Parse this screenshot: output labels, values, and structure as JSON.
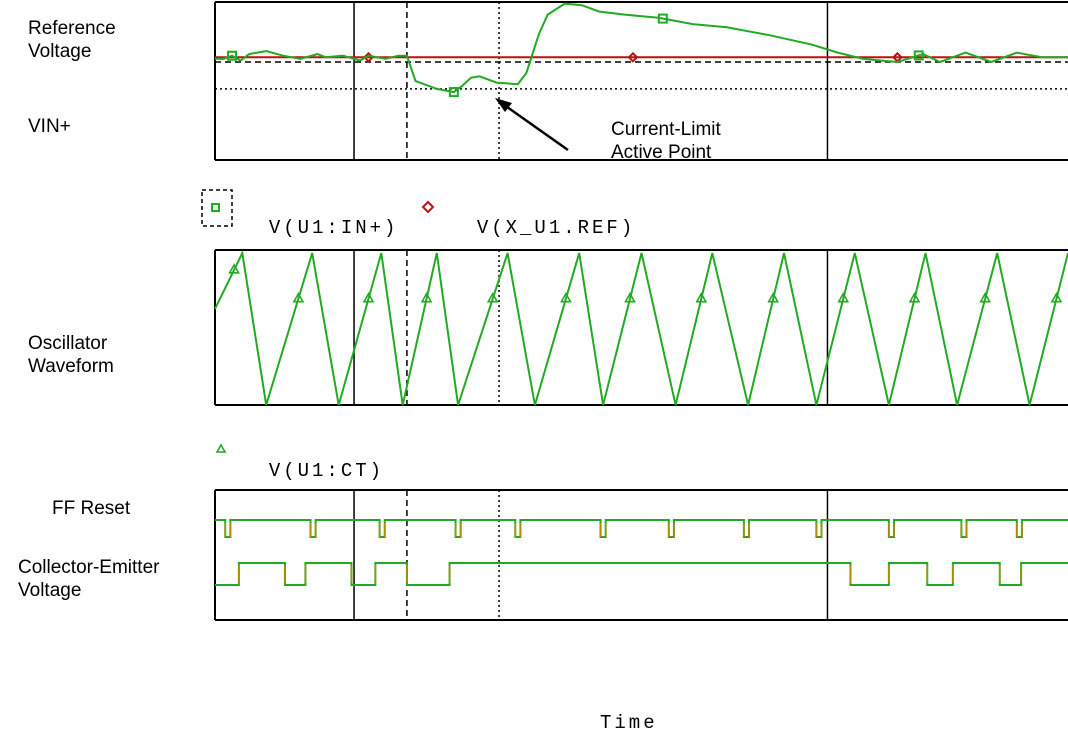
{
  "labels": {
    "ref_line1": "Reference",
    "ref_line2": "Voltage",
    "vin": "VIN+",
    "osc_line1": "Oscillator",
    "osc_line2": "Waveform",
    "ff_reset": "FF Reset",
    "ce_line1": "Collector-Emitter",
    "ce_line2": "Voltage",
    "annotation_line1": "Current-Limit",
    "annotation_line2": "Active Point",
    "time": "Time"
  },
  "legends": {
    "vin_trace": "V(U1:IN+)",
    "ref_trace": "V(X_U1.REF)",
    "ct_trace": "V(U1:CT)"
  },
  "colors": {
    "trace": "#22aa22",
    "reference": "#bb1111",
    "digital_alt": "#bb8800",
    "frame": "#000000"
  },
  "chart_data": [
    {
      "type": "line",
      "title": "",
      "panel": "voltage",
      "xlabel": "Time",
      "ylabel": "",
      "grid": true,
      "x_grid_major": [
        0.163,
        0.718
      ],
      "x_markers": [
        {
          "x": 0.225,
          "style": "dashed"
        },
        {
          "x": 0.333,
          "style": "dotted"
        }
      ],
      "y_markers": [
        {
          "y": 0.62,
          "style": "dashed",
          "name": "Reference Voltage"
        },
        {
          "y": 0.45,
          "style": "dotted",
          "name": "VIN+"
        }
      ],
      "ylim": [
        0,
        1
      ],
      "series": [
        {
          "name": "V(U1:IN+)",
          "marker": "square",
          "x": [
            0,
            0.01,
            0.02,
            0.03,
            0.04,
            0.06,
            0.08,
            0.1,
            0.12,
            0.13,
            0.15,
            0.17,
            0.18,
            0.2,
            0.215,
            0.225,
            0.235,
            0.26,
            0.28,
            0.29,
            0.3,
            0.31,
            0.33,
            0.355,
            0.365,
            0.38,
            0.39,
            0.41,
            0.43,
            0.45,
            0.48,
            0.52,
            0.56,
            0.6,
            0.65,
            0.7,
            0.73,
            0.76,
            0.8,
            0.83,
            0.85,
            0.88,
            0.91,
            0.94,
            0.97,
            1.0
          ],
          "y": [
            0.64,
            0.64,
            0.66,
            0.63,
            0.67,
            0.69,
            0.66,
            0.64,
            0.67,
            0.65,
            0.66,
            0.63,
            0.66,
            0.64,
            0.66,
            0.66,
            0.5,
            0.45,
            0.43,
            0.47,
            0.52,
            0.53,
            0.49,
            0.48,
            0.55,
            0.8,
            0.92,
            0.99,
            0.98,
            0.94,
            0.92,
            0.9,
            0.86,
            0.84,
            0.79,
            0.73,
            0.68,
            0.64,
            0.62,
            0.67,
            0.62,
            0.68,
            0.62,
            0.68,
            0.65,
            0.65
          ]
        },
        {
          "name": "V(X_U1.REF)",
          "marker": "diamond",
          "x": [
            0,
            1
          ],
          "y": [
            0.65,
            0.65
          ]
        }
      ]
    },
    {
      "type": "line",
      "title": "",
      "panel": "oscillator",
      "grid": true,
      "x_grid_major": [
        0.163,
        0.718
      ],
      "x_markers": [
        {
          "x": 0.225,
          "style": "dashed"
        },
        {
          "x": 0.333,
          "style": "dotted"
        }
      ],
      "ylim": [
        0,
        1
      ],
      "series": [
        {
          "name": "V(U1:CT)",
          "marker": "triangle",
          "waveform": "sawtooth",
          "peaks_x": [
            0.032,
            0.114,
            0.195,
            0.26,
            0.343,
            0.427,
            0.5,
            0.583,
            0.667,
            0.75,
            0.833,
            0.917,
            1.0
          ],
          "troughs_x": [
            0.06,
            0.145,
            0.22,
            0.285,
            0.375,
            0.455,
            0.54,
            0.625,
            0.705,
            0.79,
            0.87,
            0.955
          ],
          "peak_y": 0.98,
          "trough_y": 0.0
        }
      ]
    },
    {
      "type": "line",
      "title": "",
      "panel": "digital",
      "grid": true,
      "x_grid_major": [
        0.163,
        0.718
      ],
      "x_markers": [
        {
          "x": 0.225,
          "style": "dashed"
        },
        {
          "x": 0.333,
          "style": "dotted"
        }
      ],
      "series": [
        {
          "name": "FF Reset",
          "type": "pulse-train",
          "high_level": 1,
          "pulse_x": [
            0.012,
            0.112,
            0.193,
            0.282,
            0.352,
            0.452,
            0.532,
            0.62,
            0.705,
            0.79,
            0.875,
            0.94
          ],
          "pulse_width": 0.006
        },
        {
          "name": "Collector-Emitter Voltage",
          "type": "square",
          "transitions": [
            [
              0.0,
              0
            ],
            [
              0.028,
              1
            ],
            [
              0.082,
              0
            ],
            [
              0.106,
              1
            ],
            [
              0.16,
              0
            ],
            [
              0.188,
              1
            ],
            [
              0.225,
              0
            ],
            [
              0.275,
              1
            ],
            [
              0.333,
              1
            ],
            [
              0.676,
              1
            ],
            [
              0.685,
              1
            ],
            [
              0.745,
              0
            ],
            [
              0.79,
              1
            ],
            [
              0.835,
              0
            ],
            [
              0.865,
              1
            ],
            [
              0.92,
              0
            ],
            [
              0.945,
              1
            ],
            [
              1.0,
              1
            ]
          ]
        }
      ]
    }
  ]
}
